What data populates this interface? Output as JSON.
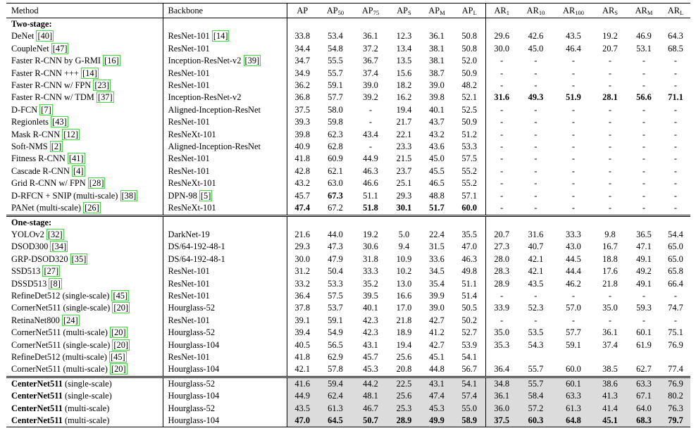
{
  "header": [
    "Method",
    "Backbone",
    "AP",
    "AP",
    "AP",
    "AP",
    "AP",
    "AP",
    "AR",
    "AR",
    "AR",
    "AR",
    "AR",
    "AR"
  ],
  "header_subs": [
    "",
    "",
    "",
    "50",
    "75",
    "S",
    "M",
    "L",
    "1",
    "10",
    "100",
    "S",
    "M",
    "L"
  ],
  "sections": [
    {
      "title": "Two-stage:",
      "rows": [
        {
          "method": "DeNet",
          "cite": "40",
          "backbone": "ResNet-101",
          "bcite": "14",
          "vals": [
            "33.8",
            "53.4",
            "36.1",
            "12.3",
            "36.1",
            "50.8",
            "29.6",
            "42.6",
            "43.5",
            "19.2",
            "46.9",
            "64.3"
          ],
          "bold": []
        },
        {
          "method": "CoupleNet",
          "cite": "47",
          "backbone": "ResNet-101",
          "bcite": "",
          "vals": [
            "34.4",
            "54.8",
            "37.2",
            "13.4",
            "38.1",
            "50.8",
            "30.0",
            "45.0",
            "46.4",
            "20.7",
            "53.1",
            "68.5"
          ],
          "bold": []
        },
        {
          "method": "Faster R-CNN by G-RMI",
          "cite": "16",
          "backbone": "Inception-ResNet-v2",
          "bcite": "39",
          "vals": [
            "34.7",
            "55.5",
            "36.7",
            "13.5",
            "38.1",
            "52.0",
            "-",
            "-",
            "-",
            "-",
            "-",
            "-"
          ],
          "bold": []
        },
        {
          "method": "Faster R-CNN +++",
          "cite": "14",
          "backbone": "ResNet-101",
          "bcite": "",
          "vals": [
            "34.9",
            "55.7",
            "37.4",
            "15.6",
            "38.7",
            "50.9",
            "-",
            "-",
            "-",
            "-",
            "-",
            "-"
          ],
          "bold": []
        },
        {
          "method": "Faster R-CNN w/ FPN",
          "cite": "23",
          "backbone": "ResNet-101",
          "bcite": "",
          "vals": [
            "36.2",
            "59.1",
            "39.0",
            "18.2",
            "39.0",
            "48.2",
            "-",
            "-",
            "-",
            "-",
            "-",
            "-"
          ],
          "bold": []
        },
        {
          "method": "Faster R-CNN w/ TDM",
          "cite": "37",
          "backbone": "Inception-ResNet-v2",
          "bcite": "",
          "vals": [
            "36.8",
            "57.7",
            "39.2",
            "16.2",
            "39.8",
            "52.1",
            "31.6",
            "49.3",
            "51.9",
            "28.1",
            "56.6",
            "71.1"
          ],
          "bold": [
            6,
            7,
            8,
            9,
            10,
            11
          ]
        },
        {
          "method": "D-FCN",
          "cite": "7",
          "backbone": "Aligned-Inception-ResNet",
          "bcite": "",
          "vals": [
            "37.5",
            "58.0",
            "-",
            "19.4",
            "40.1",
            "52.5",
            "-",
            "-",
            "-",
            "-",
            "-",
            "-"
          ],
          "bold": []
        },
        {
          "method": "Regionlets",
          "cite": "43",
          "backbone": "ResNet-101",
          "bcite": "",
          "vals": [
            "39.3",
            "59.8",
            "-",
            "21.7",
            "43.7",
            "50.9",
            "-",
            "-",
            "-",
            "-",
            "-",
            "-"
          ],
          "bold": []
        },
        {
          "method": "Mask R-CNN",
          "cite": "12",
          "backbone": "ResNeXt-101",
          "bcite": "",
          "vals": [
            "39.8",
            "62.3",
            "43.4",
            "22.1",
            "43.2",
            "51.2",
            "-",
            "-",
            "-",
            "-",
            "-",
            "-"
          ],
          "bold": []
        },
        {
          "method": "Soft-NMS",
          "cite": "2",
          "backbone": "Aligned-Inception-ResNet",
          "bcite": "",
          "vals": [
            "40.9",
            "62.8",
            "-",
            "23.3",
            "43.6",
            "53.3",
            "-",
            "-",
            "-",
            "-",
            "-",
            "-"
          ],
          "bold": []
        },
        {
          "method": "Fitness R-CNN",
          "cite": "41",
          "backbone": "ResNet-101",
          "bcite": "",
          "vals": [
            "41.8",
            "60.9",
            "44.9",
            "21.5",
            "45.0",
            "57.5",
            "-",
            "-",
            "-",
            "-",
            "-",
            "-"
          ],
          "bold": []
        },
        {
          "method": "Cascade R-CNN",
          "cite": "4",
          "backbone": "ResNet-101",
          "bcite": "",
          "vals": [
            "42.8",
            "62.1",
            "46.3",
            "23.7",
            "45.5",
            "55.2",
            "-",
            "-",
            "-",
            "-",
            "-",
            "-"
          ],
          "bold": []
        },
        {
          "method": "Grid R-CNN w/ FPN",
          "cite": "28",
          "backbone": "ResNeXt-101",
          "bcite": "",
          "vals": [
            "43.2",
            "63.0",
            "46.6",
            "25.1",
            "46.5",
            "55.2",
            "-",
            "-",
            "-",
            "-",
            "-",
            "-"
          ],
          "bold": []
        },
        {
          "method": "D-RFCN + SNIP (multi-scale)",
          "cite": "38",
          "backbone": "DPN-98",
          "bcite": "5",
          "vals": [
            "45.7",
            "67.3",
            "51.1",
            "29.3",
            "48.8",
            "57.1",
            "-",
            "-",
            "-",
            "-",
            "-",
            "-"
          ],
          "bold": [
            1
          ]
        },
        {
          "method": "PANet (multi-scale)",
          "cite": "26",
          "backbone": "ResNeXt-101",
          "bcite": "",
          "vals": [
            "47.4",
            "67.2",
            "51.8",
            "30.1",
            "51.7",
            "60.0",
            "-",
            "-",
            "-",
            "-",
            "-",
            "-"
          ],
          "bold": [
            0,
            2,
            3,
            4,
            5
          ]
        }
      ]
    },
    {
      "title": "One-stage:",
      "rows": [
        {
          "method": "YOLOv2",
          "cite": "32",
          "backbone": "DarkNet-19",
          "bcite": "",
          "vals": [
            "21.6",
            "44.0",
            "19.2",
            "5.0",
            "22.4",
            "35.5",
            "20.7",
            "31.6",
            "33.3",
            "9.8",
            "36.5",
            "54.4"
          ],
          "bold": []
        },
        {
          "method": "DSOD300",
          "cite": "34",
          "backbone": "DS/64-192-48-1",
          "bcite": "",
          "vals": [
            "29.3",
            "47.3",
            "30.6",
            "9.4",
            "31.5",
            "47.0",
            "27.3",
            "40.7",
            "43.0",
            "16.7",
            "47.1",
            "65.0"
          ],
          "bold": []
        },
        {
          "method": "GRP-DSOD320",
          "cite": "35",
          "backbone": "DS/64-192-48-1",
          "bcite": "",
          "vals": [
            "30.0",
            "47.9",
            "31.8",
            "10.9",
            "33.6",
            "46.3",
            "28.0",
            "42.1",
            "44.5",
            "18.8",
            "49.1",
            "65.0"
          ],
          "bold": []
        },
        {
          "method": "SSD513",
          "cite": "27",
          "backbone": "ResNet-101",
          "bcite": "",
          "vals": [
            "31.2",
            "50.4",
            "33.3",
            "10.2",
            "34.5",
            "49.8",
            "28.3",
            "42.1",
            "44.4",
            "17.6",
            "49.2",
            "65.8"
          ],
          "bold": []
        },
        {
          "method": "DSSD513",
          "cite": "8",
          "backbone": "ResNet-101",
          "bcite": "",
          "vals": [
            "33.2",
            "53.3",
            "35.2",
            "13.0",
            "35.4",
            "51.1",
            "28.9",
            "43.5",
            "46.2",
            "21.8",
            "49.1",
            "66.4"
          ],
          "bold": []
        },
        {
          "method": "RefineDet512 (single-scale)",
          "cite": "45",
          "backbone": "ResNet-101",
          "bcite": "",
          "vals": [
            "36.4",
            "57.5",
            "39.5",
            "16.6",
            "39.9",
            "51.4",
            "-",
            "-",
            "-",
            "-",
            "-",
            "-"
          ],
          "bold": []
        },
        {
          "method": "CornerNet511 (single-scale)",
          "cite": "20",
          "backbone": "Hourglass-52",
          "bcite": "",
          "vals": [
            "37.8",
            "53.7",
            "40.1",
            "17.0",
            "39.0",
            "50.5",
            "33.9",
            "52.3",
            "57.0",
            "35.0",
            "59.3",
            "74.7"
          ],
          "bold": []
        },
        {
          "method": "RetinaNet800",
          "cite": "24",
          "backbone": "ResNet-101",
          "bcite": "",
          "vals": [
            "39.1",
            "59.1",
            "42.3",
            "21.8",
            "42.7",
            "50.2",
            "-",
            "-",
            "-",
            "-",
            "-",
            "-"
          ],
          "bold": []
        },
        {
          "method": "CornerNet511 (multi-scale)",
          "cite": "20",
          "backbone": "Hourglass-52",
          "bcite": "",
          "vals": [
            "39.4",
            "54.9",
            "42.3",
            "18.9",
            "41.2",
            "52.7",
            "35.0",
            "53.5",
            "57.7",
            "36.1",
            "60.1",
            "75.1"
          ],
          "bold": []
        },
        {
          "method": "CornerNet511 (single-scale)",
          "cite": "20",
          "backbone": "Hourglass-104",
          "bcite": "",
          "vals": [
            "40.5",
            "56.5",
            "43.1",
            "19.4",
            "42.7",
            "53.9",
            "35.3",
            "54.3",
            "59.1",
            "37.4",
            "61.9",
            "76.9"
          ],
          "bold": []
        },
        {
          "method": "RefineDet512 (multi-scale)",
          "cite": "45",
          "backbone": "ResNet-101",
          "bcite": "",
          "vals": [
            "41.8",
            "62.9",
            "45.7",
            "25.6",
            "45.1",
            "54.1",
            "",
            "",
            "",
            "",
            "",
            ""
          ],
          "bold": []
        },
        {
          "method": "CornerNet511 (multi-scale)",
          "cite": "20",
          "backbone": "Hourglass-104",
          "bcite": "",
          "vals": [
            "42.1",
            "57.8",
            "45.3",
            "20.8",
            "44.8",
            "56.7",
            "36.4",
            "55.7",
            "60.0",
            "38.5",
            "62.7",
            "77.4"
          ],
          "bold": []
        }
      ]
    },
    {
      "title": "",
      "rows": [
        {
          "method": "CenterNet511",
          "suffix": " (single-scale)",
          "cite": "",
          "backbone": "Hourglass-52",
          "bcite": "",
          "vals": [
            "41.6",
            "59.4",
            "44.2",
            "22.5",
            "43.1",
            "54.1",
            "34.8",
            "55.7",
            "60.1",
            "38.6",
            "63.3",
            "76.9"
          ],
          "bold": []
        },
        {
          "method": "CenterNet511",
          "suffix": " (single-scale)",
          "cite": "",
          "backbone": "Hourglass-104",
          "bcite": "",
          "vals": [
            "44.9",
            "62.4",
            "48.1",
            "25.6",
            "47.4",
            "57.4",
            "36.1",
            "58.4",
            "63.3",
            "41.3",
            "67.1",
            "80.2"
          ],
          "bold": []
        },
        {
          "method": "CenterNet511",
          "suffix": " (multi-scale)",
          "cite": "",
          "backbone": "Hourglass-52",
          "bcite": "",
          "vals": [
            "43.5",
            "61.3",
            "46.7",
            "25.3",
            "45.3",
            "55.0",
            "36.0",
            "57.2",
            "61.3",
            "41.4",
            "64.0",
            "76.3"
          ],
          "bold": []
        },
        {
          "method": "CenterNet511",
          "suffix": " (multi-scale)",
          "cite": "",
          "backbone": "Hourglass-104",
          "bcite": "",
          "vals": [
            "47.0",
            "64.5",
            "50.7",
            "28.9",
            "49.9",
            "58.9",
            "37.5",
            "60.3",
            "64.8",
            "45.1",
            "68.3",
            "79.7"
          ],
          "bold": [
            0,
            1,
            2,
            3,
            4,
            5,
            6,
            7,
            8,
            9,
            10,
            11
          ]
        }
      ]
    }
  ],
  "colors": {
    "shade": "#dcdcdc",
    "cite_border": "#3ddc3d"
  }
}
